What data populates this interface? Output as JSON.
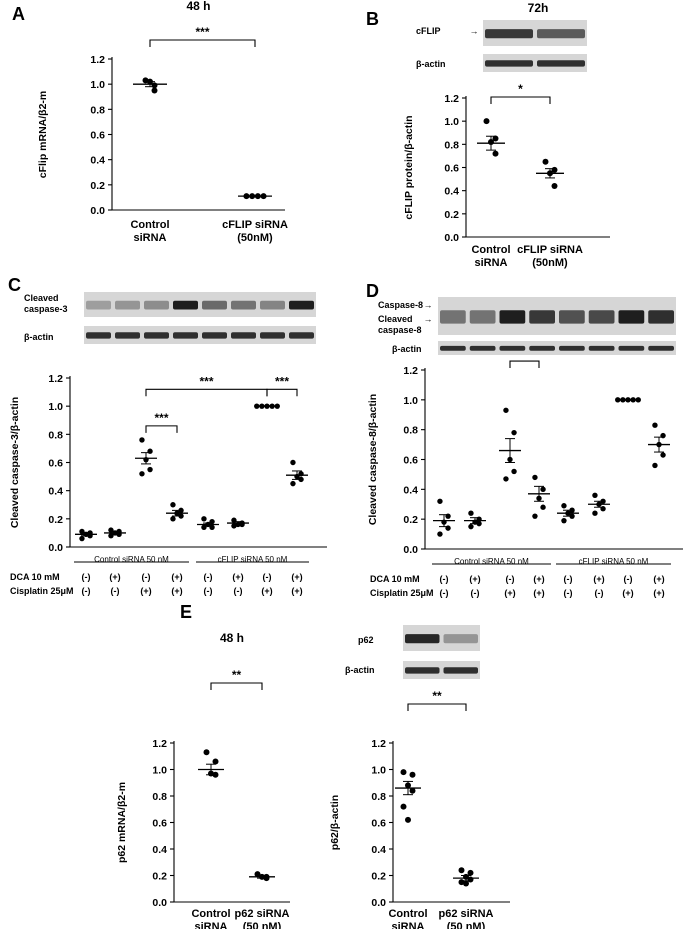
{
  "chart_data": [
    {
      "id": "A",
      "type": "scatter",
      "title": "48 h",
      "ylabel": "cFlip mRNA/β2-m",
      "ylim": [
        0,
        1.2
      ],
      "yticks": [
        "0.0",
        "0.2",
        "0.4",
        "0.6",
        "0.8",
        "1.0",
        "1.2"
      ],
      "categories": [
        "Control\nsiRNA",
        "cFLIP siRNA\n(50nM)"
      ],
      "points": [
        [
          1.03,
          0.99,
          1.02,
          0.95
        ],
        [
          0.11,
          0.11,
          0.11,
          0.11
        ]
      ],
      "means": [
        1.0,
        0.11
      ],
      "sem": [
        0.02,
        0.003
      ],
      "significance": [
        {
          "from": 0,
          "to": 1,
          "label": "***"
        }
      ]
    },
    {
      "id": "B",
      "type": "scatter",
      "title": "72h",
      "ylabel": "cFLIP protein/β-actin",
      "ylim": [
        0,
        1.2
      ],
      "yticks": [
        "0.0",
        "0.2",
        "0.4",
        "0.6",
        "0.8",
        "1.0",
        "1.2"
      ],
      "categories": [
        "Control\nsiRNA",
        "cFLIP siRNA\n(50nM)"
      ],
      "points": [
        [
          1.0,
          0.85,
          0.82,
          0.72
        ],
        [
          0.65,
          0.58,
          0.55,
          0.44
        ]
      ],
      "means": [
        0.81,
        0.55
      ],
      "sem": [
        0.06,
        0.04
      ],
      "significance": [
        {
          "from": 0,
          "to": 1,
          "label": "*"
        }
      ],
      "blot_labels": [
        "cFLIP",
        "β-actin"
      ]
    },
    {
      "id": "C",
      "type": "scatter",
      "ylabel": "Cleaved caspase-3/β-actin",
      "ylim": [
        0,
        1.2
      ],
      "yticks": [
        "0.0",
        "0.2",
        "0.4",
        "0.6",
        "0.8",
        "1.0",
        "1.2"
      ],
      "points": [
        [
          0.06,
          0.08,
          0.09,
          0.1,
          0.11
        ],
        [
          0.08,
          0.09,
          0.1,
          0.11,
          0.12
        ],
        [
          0.76,
          0.68,
          0.62,
          0.55,
          0.52
        ],
        [
          0.3,
          0.26,
          0.24,
          0.22,
          0.2
        ],
        [
          0.2,
          0.18,
          0.16,
          0.14,
          0.14
        ],
        [
          0.19,
          0.17,
          0.16,
          0.16,
          0.15
        ],
        [
          1.0,
          1.0,
          1.0,
          1.0,
          1.0
        ],
        [
          0.6,
          0.52,
          0.5,
          0.48,
          0.45
        ]
      ],
      "means": [
        0.09,
        0.1,
        0.63,
        0.24,
        0.16,
        0.17,
        1.0,
        0.51
      ],
      "sem": [
        0.01,
        0.01,
        0.04,
        0.02,
        0.01,
        0.01,
        0.0,
        0.03
      ],
      "significance": [
        {
          "from": 2,
          "to": 3,
          "label": "***",
          "y": 0.86
        },
        {
          "from": 2,
          "to": 6,
          "label": "***",
          "y": 1.12
        },
        {
          "from": 6,
          "to": 7,
          "label": "***",
          "y": 1.12
        }
      ],
      "groups": [
        "Control siRNA 50 nM",
        "cFLIP siRNA 50 nM"
      ],
      "blot_labels": [
        "Cleaved\ncaspase-3",
        "β-actin"
      ]
    },
    {
      "id": "D",
      "type": "scatter",
      "ylabel": "Cleaved caspase-8/β-actin",
      "ylim": [
        0,
        1.2
      ],
      "yticks": [
        "0.0",
        "0.2",
        "0.4",
        "0.6",
        "0.8",
        "1.0",
        "1.2"
      ],
      "points": [
        [
          0.32,
          0.22,
          0.18,
          0.14,
          0.1
        ],
        [
          0.24,
          0.2,
          0.18,
          0.17,
          0.15
        ],
        [
          0.93,
          0.78,
          0.6,
          0.52,
          0.47
        ],
        [
          0.48,
          0.4,
          0.34,
          0.28,
          0.22
        ],
        [
          0.29,
          0.26,
          0.24,
          0.22,
          0.19
        ],
        [
          0.36,
          0.32,
          0.3,
          0.27,
          0.24
        ],
        [
          1.0,
          1.0,
          1.0,
          1.0,
          1.0
        ],
        [
          0.83,
          0.76,
          0.7,
          0.63,
          0.56
        ]
      ],
      "means": [
        0.19,
        0.19,
        0.66,
        0.37,
        0.24,
        0.3,
        1.0,
        0.7
      ],
      "sem": [
        0.04,
        0.02,
        0.08,
        0.05,
        0.02,
        0.02,
        0.0,
        0.05
      ],
      "significance": [
        {
          "from": 2,
          "to": 3,
          "label": "**",
          "y": 1.26
        },
        {
          "from": 2,
          "to": 6,
          "label": "***",
          "y": 1.5
        },
        {
          "from": 6,
          "to": 7,
          "label": "***",
          "y": 1.5
        }
      ],
      "groups": [
        "Control siRNA 50 nM",
        "cFLIP siRNA 50 nM"
      ],
      "blot_labels": [
        "Caspase-8",
        "Cleaved\ncaspase-8",
        "β-actin"
      ]
    },
    {
      "id": "E1",
      "type": "scatter",
      "title": "48 h",
      "ylabel": "p62 mRNA/β2-m",
      "ylim": [
        0,
        1.2
      ],
      "yticks": [
        "0.0",
        "0.2",
        "0.4",
        "0.6",
        "0.8",
        "1.0",
        "1.2"
      ],
      "categories": [
        "Control\nsiRNA",
        "p62 siRNA\n(50 nM)"
      ],
      "points": [
        [
          1.13,
          1.06,
          0.97,
          0.96
        ],
        [
          0.21,
          0.19,
          0.19,
          0.18
        ]
      ],
      "means": [
        1.0,
        0.19
      ],
      "sem": [
        0.04,
        0.01
      ],
      "significance": [
        {
          "from": 0,
          "to": 1,
          "label": "**"
        }
      ]
    },
    {
      "id": "E2",
      "type": "scatter",
      "title": "48 h",
      "ylabel": "p62/β-actin",
      "ylim": [
        0,
        1.2
      ],
      "yticks": [
        "0.0",
        "0.2",
        "0.4",
        "0.6",
        "0.8",
        "1.0",
        "1.2"
      ],
      "categories": [
        "Control\nsiRNA",
        "p62 siRNA\n(50 nM)"
      ],
      "points": [
        [
          0.98,
          0.96,
          0.88,
          0.84,
          0.72,
          0.62
        ],
        [
          0.24,
          0.22,
          0.19,
          0.17,
          0.15,
          0.14
        ]
      ],
      "means": [
        0.86,
        0.18
      ],
      "sem": [
        0.05,
        0.02
      ],
      "significance": [
        {
          "from": 0,
          "to": 1,
          "label": "**"
        }
      ],
      "blot_labels": [
        "p62",
        "β-actin"
      ]
    }
  ],
  "treatments": {
    "rows": [
      {
        "label": "DCA 10 mM",
        "values": [
          "(-)",
          "(+)",
          "(-)",
          "(+)",
          "(-)",
          "(+)",
          "(-)",
          "(+)"
        ]
      },
      {
        "label": "Cisplatin 25μM",
        "values": [
          "(-)",
          "(-)",
          "(+)",
          "(+)",
          "(-)",
          "(-)",
          "(+)",
          "(+)"
        ]
      }
    ]
  },
  "panel_letters": [
    "A",
    "B",
    "C",
    "D",
    "E"
  ]
}
